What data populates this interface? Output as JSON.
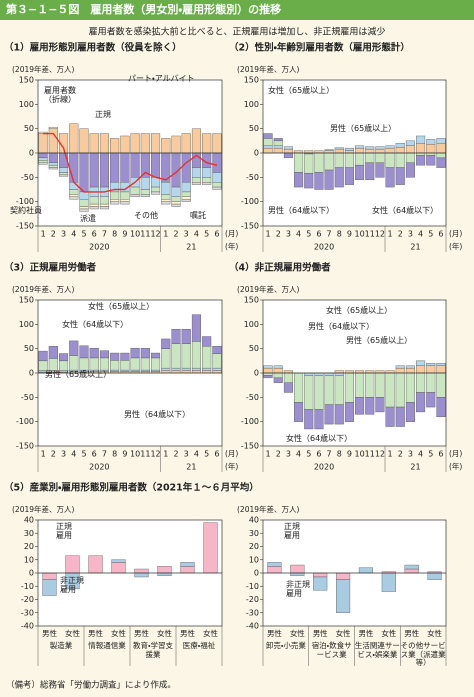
{
  "header": {
    "title": "第３−１−５図　雇用者数（男女別・雇用形態別）の推移",
    "subtitle": "雇用者数を感染拡大前と比べると、正規雇用は増加し、非正規雇用は減少"
  },
  "footer": "（備考）総務省「労働力調査」により作成。",
  "chart_data": [
    {
      "type": "bar",
      "stacked": true,
      "title": "（1）雇用形態別雇用者数（役員を除く）",
      "ylabel": "(2019年差、万人)",
      "categories": [
        "1",
        "2",
        "3",
        "4",
        "5",
        "6",
        "7",
        "8",
        "9",
        "10",
        "11",
        "12",
        "1",
        "2",
        "3",
        "4",
        "5",
        "6"
      ],
      "x_groups": [
        "2020",
        "21"
      ],
      "x_unit": "(月)",
      "x_group_unit": "(年)",
      "ylim": [
        -150,
        150
      ],
      "yticks": [
        150,
        100,
        50,
        0,
        -50,
        -100,
        -150
      ],
      "series": [
        {
          "name": "正規",
          "color": "#f9cb9c",
          "values": [
            40,
            50,
            40,
            60,
            50,
            40,
            40,
            30,
            35,
            40,
            40,
            40,
            30,
            35,
            40,
            50,
            40,
            40
          ]
        },
        {
          "name": "パート・アルバイト",
          "color": "#9b8fd0",
          "values": [
            -10,
            -20,
            -30,
            -60,
            -80,
            -70,
            -70,
            -60,
            -60,
            -50,
            -50,
            -50,
            -60,
            -70,
            -60,
            -30,
            -30,
            -40
          ]
        },
        {
          "name": "契約社員",
          "color": "#b4d7ee",
          "values": [
            -5,
            -5,
            -10,
            -15,
            -15,
            -20,
            -20,
            -20,
            -20,
            -20,
            -25,
            -20,
            -25,
            -20,
            -20,
            -20,
            -20,
            -20
          ]
        },
        {
          "name": "派遣",
          "color": "#c9e6c1",
          "values": [
            -5,
            -5,
            -5,
            -10,
            -15,
            -15,
            -15,
            -15,
            -15,
            -15,
            -10,
            -10,
            -10,
            -10,
            -10,
            -10,
            -10,
            -10
          ]
        },
        {
          "name": "その他",
          "color": "#fff2cc",
          "values": [
            3,
            3,
            0,
            -5,
            -5,
            -5,
            -5,
            -5,
            -5,
            0,
            0,
            0,
            -5,
            -5,
            -5,
            0,
            0,
            0
          ]
        },
        {
          "name": "嘱託",
          "color": "#d9d9d9",
          "values": [
            -3,
            -3,
            -3,
            -5,
            -5,
            -5,
            -5,
            -5,
            -5,
            -5,
            -5,
            -5,
            -5,
            -5,
            -5,
            -5,
            -5,
            -5
          ]
        },
        {
          "name": "雇用者数（折線）",
          "type": "line",
          "color": "#e8302a",
          "values": [
            40,
            40,
            10,
            -60,
            -80,
            -80,
            -80,
            -75,
            -75,
            -60,
            -40,
            -50,
            -55,
            -40,
            -20,
            -5,
            -20,
            -25
          ]
        }
      ]
    },
    {
      "type": "bar",
      "stacked": true,
      "title": "（2）性別・年齢別雇用者数（雇用形態計）",
      "ylabel": "(2019年差、万人)",
      "categories": [
        "1",
        "2",
        "3",
        "4",
        "5",
        "6",
        "7",
        "8",
        "9",
        "10",
        "11",
        "12",
        "1",
        "2",
        "3",
        "4",
        "5",
        "6"
      ],
      "x_groups": [
        "2020",
        "21"
      ],
      "x_unit": "(月)",
      "x_group_unit": "(年)",
      "ylim": [
        -150,
        150
      ],
      "yticks": [
        150,
        100,
        50,
        0,
        -50,
        -100,
        -150
      ],
      "series": [
        {
          "name": "女性（65歳以上）",
          "color": "#f9cb9c",
          "values": [
            10,
            10,
            8,
            5,
            5,
            5,
            5,
            8,
            5,
            10,
            8,
            8,
            10,
            12,
            15,
            20,
            18,
            20
          ]
        },
        {
          "name": "男性（65歳以上）",
          "color": "#b4d7ee",
          "values": [
            5,
            5,
            5,
            0,
            -2,
            0,
            2,
            3,
            5,
            5,
            5,
            5,
            5,
            8,
            10,
            15,
            10,
            10
          ]
        },
        {
          "name": "女性（64歳以下）",
          "color": "#c9e6c1",
          "values": [
            15,
            10,
            0,
            -40,
            -40,
            -40,
            -35,
            -30,
            -30,
            -25,
            -20,
            -20,
            -30,
            -30,
            -20,
            -5,
            -5,
            -10
          ]
        },
        {
          "name": "男性（64歳以下）",
          "color": "#9b8fd0",
          "values": [
            10,
            5,
            -10,
            -30,
            -30,
            -35,
            -40,
            -40,
            -35,
            -30,
            -35,
            -30,
            -40,
            -35,
            -30,
            -20,
            -20,
            -20
          ]
        }
      ]
    },
    {
      "type": "bar",
      "stacked": true,
      "title": "（3）正規雇用労働者",
      "ylabel": "(2019年差、万人)",
      "categories": [
        "1",
        "2",
        "3",
        "4",
        "5",
        "6",
        "7",
        "8",
        "9",
        "10",
        "11",
        "12",
        "1",
        "2",
        "3",
        "4",
        "5",
        "6"
      ],
      "x_groups": [
        "2020",
        "21"
      ],
      "x_unit": "(月)",
      "x_group_unit": "(年)",
      "ylim": [
        -150,
        150
      ],
      "yticks": [
        150,
        100,
        50,
        0,
        -50,
        -100,
        -150
      ],
      "series": [
        {
          "name": "女性（65歳以上）",
          "color": "#f9cb9c",
          "values": [
            2,
            2,
            2,
            3,
            3,
            3,
            3,
            3,
            3,
            3,
            3,
            3,
            5,
            5,
            5,
            5,
            5,
            5
          ]
        },
        {
          "name": "男性（65歳以上）",
          "color": "#b4d7ee",
          "values": [
            3,
            3,
            3,
            3,
            3,
            3,
            3,
            3,
            3,
            3,
            3,
            3,
            5,
            5,
            5,
            5,
            5,
            5
          ]
        },
        {
          "name": "女性（64歳以下）",
          "color": "#c9e6c1",
          "values": [
            20,
            25,
            20,
            30,
            25,
            25,
            25,
            20,
            20,
            25,
            25,
            25,
            40,
            50,
            50,
            55,
            45,
            30
          ]
        },
        {
          "name": "男性（64歳以下）",
          "color": "#9b8fd0",
          "values": [
            20,
            25,
            15,
            30,
            25,
            20,
            15,
            15,
            15,
            20,
            20,
            10,
            20,
            30,
            30,
            55,
            20,
            15
          ]
        }
      ]
    },
    {
      "type": "bar",
      "stacked": true,
      "title": "（4）非正規雇用労働者",
      "ylabel": "(2019年差、万人)",
      "categories": [
        "1",
        "2",
        "3",
        "4",
        "5",
        "6",
        "7",
        "8",
        "9",
        "10",
        "11",
        "12",
        "1",
        "2",
        "3",
        "4",
        "5",
        "6"
      ],
      "x_groups": [
        "2020",
        "21"
      ],
      "x_unit": "(月)",
      "x_group_unit": "(年)",
      "ylim": [
        -150,
        150
      ],
      "yticks": [
        150,
        100,
        50,
        0,
        -50,
        -100,
        -150
      ],
      "series": [
        {
          "name": "女性（65歳以上）",
          "color": "#f9cb9c",
          "values": [
            10,
            10,
            5,
            0,
            0,
            0,
            0,
            5,
            5,
            5,
            5,
            5,
            5,
            10,
            10,
            15,
            15,
            15
          ]
        },
        {
          "name": "男性（65歳以上）",
          "color": "#b4d7ee",
          "values": [
            5,
            5,
            0,
            0,
            -5,
            -5,
            -5,
            -5,
            0,
            0,
            0,
            0,
            0,
            5,
            5,
            10,
            5,
            5
          ]
        },
        {
          "name": "女性（64歳以下）",
          "color": "#c9e6c1",
          "values": [
            -5,
            -10,
            -20,
            -60,
            -70,
            -70,
            -60,
            -60,
            -60,
            -50,
            -50,
            -50,
            -70,
            -70,
            -60,
            -40,
            -40,
            -50
          ]
        },
        {
          "name": "男性（64歳以下）",
          "color": "#9b8fd0",
          "values": [
            -5,
            -10,
            -20,
            -40,
            -40,
            -40,
            -40,
            -40,
            -40,
            -35,
            -35,
            -30,
            -40,
            -40,
            -40,
            -40,
            -30,
            -40
          ]
        }
      ]
    },
    {
      "type": "bar",
      "stacked": true,
      "title": "（5）産業別・雇用形態別雇用者数（2021年１〜６月平均）",
      "ylabel": "(2019年差、万人)",
      "categories": [
        "男性",
        "女性",
        "男性",
        "女性",
        "男性",
        "女性",
        "男性",
        "女性"
      ],
      "x_groups": [
        "製造業",
        "情報通信業",
        "教育・学習支援業",
        "医療・福祉"
      ],
      "ylim": [
        -40,
        40
      ],
      "yticks": [
        40,
        30,
        20,
        10,
        0,
        -10,
        -20,
        -30,
        -40
      ],
      "series": [
        {
          "name": "正規雇用",
          "color": "#f7b6c8",
          "values": [
            -5,
            13,
            13,
            8,
            3,
            5,
            5,
            38
          ]
        },
        {
          "name": "非正規雇用",
          "color": "#a9cce3",
          "values": [
            -12,
            -12,
            0,
            2,
            -3,
            -2,
            3,
            0
          ]
        }
      ]
    },
    {
      "type": "bar",
      "stacked": true,
      "ylabel": "(2019年差、万人)",
      "categories": [
        "男性",
        "女性",
        "男性",
        "女性",
        "男性",
        "女性",
        "男性",
        "女性"
      ],
      "x_groups": [
        "卸売・小売業",
        "宿泊・飲食サービス業",
        "生活関連サービス・娯楽業",
        "その他サービス業（派遣業等）"
      ],
      "ylim": [
        -40,
        40
      ],
      "yticks": [
        40,
        30,
        20,
        10,
        0,
        -10,
        -20,
        -30,
        -40
      ],
      "series": [
        {
          "name": "正規雇用",
          "color": "#f7b6c8",
          "values": [
            5,
            6,
            -3,
            -5,
            0,
            1,
            3,
            1
          ]
        },
        {
          "name": "非正規雇用",
          "color": "#a9cce3",
          "values": [
            3,
            -2,
            -10,
            -25,
            4,
            -14,
            3,
            -5
          ]
        }
      ]
    }
  ]
}
